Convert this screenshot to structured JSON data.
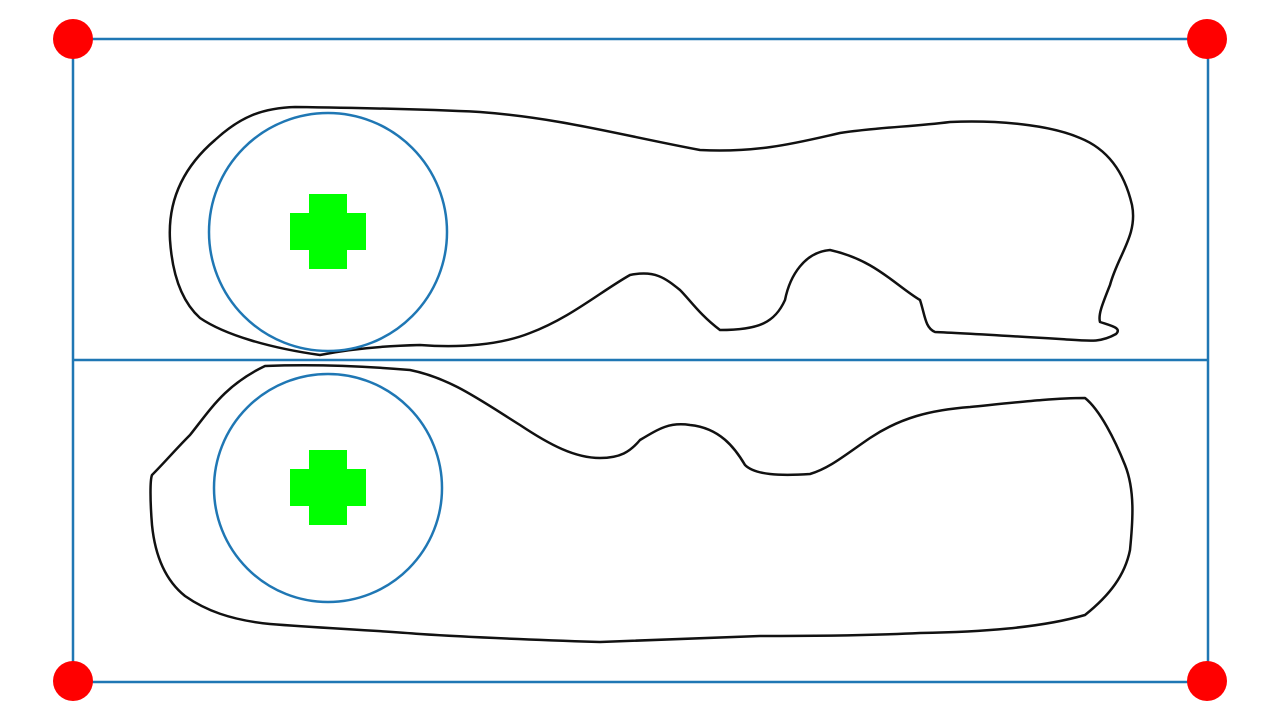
{
  "colors": {
    "background": "#ffffff",
    "frame": "#1f77b4",
    "corner_marker": "#ff0000",
    "foot_outline": "#111111",
    "circle": "#1f77b4",
    "center_marker": "#00ff00"
  },
  "frame": {
    "corner_markers": [
      "top-left",
      "top-right",
      "bottom-left",
      "bottom-right"
    ],
    "divider": "horizontal-midline"
  },
  "feet": [
    {
      "name": "upper-foot-outline",
      "orientation": "heel-left",
      "circle": "heel-circle",
      "center_marker": "plus"
    },
    {
      "name": "lower-foot-outline",
      "orientation": "heel-left",
      "circle": "heel-circle",
      "center_marker": "plus"
    }
  ]
}
